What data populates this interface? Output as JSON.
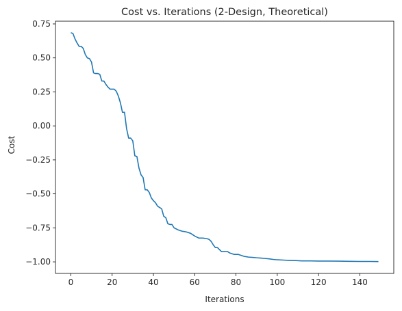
{
  "chart_data": {
    "type": "line",
    "title": "Cost vs. Iterations (2-Design, Theoretical)",
    "xlabel": "Iterations",
    "ylabel": "Cost",
    "xlim": [
      -7.45,
      156.45
    ],
    "ylim": [
      -1.085,
      0.77
    ],
    "xticks": [
      0,
      20,
      40,
      60,
      80,
      100,
      120,
      140
    ],
    "yticks": [
      -1.0,
      -0.75,
      -0.5,
      -0.25,
      0.0,
      0.25,
      0.5,
      0.75
    ],
    "ytick_labels": [
      "−1.00",
      "−0.75",
      "−0.50",
      "−0.25",
      "0.00",
      "0.25",
      "0.50",
      "0.75"
    ],
    "grid": false,
    "line_color": "#1f77b4",
    "series": [
      {
        "x": [
          0,
          1,
          2,
          3,
          4,
          5,
          6,
          7,
          8,
          9,
          10,
          11,
          12,
          13,
          14,
          15,
          16,
          17,
          18,
          19,
          20,
          21,
          22,
          23,
          24,
          25,
          26,
          27,
          28,
          29,
          30,
          31,
          32,
          33,
          34,
          35,
          36,
          37,
          38,
          39,
          40,
          41,
          42,
          43,
          44,
          45,
          46,
          47,
          48,
          49,
          50,
          52,
          54,
          56,
          58,
          60,
          62,
          64,
          66,
          67,
          68,
          69,
          70,
          71,
          72,
          73,
          74,
          75,
          76,
          77,
          78,
          79,
          80,
          81,
          82,
          83,
          84,
          85,
          86,
          88,
          90,
          92,
          94,
          96,
          98,
          100,
          103,
          106,
          108,
          112,
          116,
          120,
          125,
          130,
          135,
          140,
          145,
          149
        ],
        "values": [
          0.685,
          0.68,
          0.64,
          0.61,
          0.585,
          0.585,
          0.57,
          0.525,
          0.5,
          0.495,
          0.47,
          0.39,
          0.385,
          0.385,
          0.38,
          0.33,
          0.33,
          0.305,
          0.285,
          0.27,
          0.27,
          0.27,
          0.255,
          0.22,
          0.17,
          0.1,
          0.1,
          -0.02,
          -0.09,
          -0.09,
          -0.11,
          -0.22,
          -0.225,
          -0.31,
          -0.36,
          -0.38,
          -0.47,
          -0.47,
          -0.49,
          -0.53,
          -0.55,
          -0.565,
          -0.59,
          -0.6,
          -0.61,
          -0.665,
          -0.675,
          -0.72,
          -0.725,
          -0.725,
          -0.75,
          -0.765,
          -0.775,
          -0.78,
          -0.79,
          -0.81,
          -0.825,
          -0.825,
          -0.83,
          -0.835,
          -0.85,
          -0.875,
          -0.895,
          -0.895,
          -0.91,
          -0.925,
          -0.925,
          -0.925,
          -0.925,
          -0.935,
          -0.94,
          -0.945,
          -0.945,
          -0.945,
          -0.95,
          -0.955,
          -0.96,
          -0.962,
          -0.965,
          -0.967,
          -0.97,
          -0.972,
          -0.975,
          -0.978,
          -0.982,
          -0.985,
          -0.987,
          -0.99,
          -0.99,
          -0.993,
          -0.993,
          -0.994,
          -0.994,
          -0.995,
          -0.996,
          -0.997,
          -0.997,
          -0.998
        ]
      }
    ]
  }
}
